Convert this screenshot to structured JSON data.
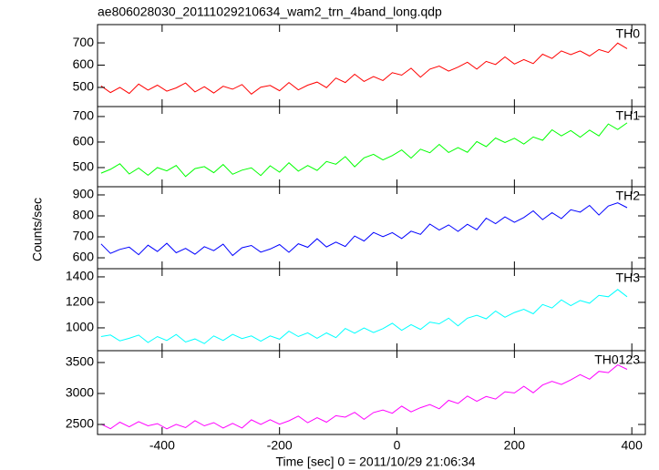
{
  "title": "ae806028030_20111029210634_wam2_trn_4band_long.qdp",
  "ylabel": "Counts/sec",
  "xlabel": "Time [sec] 0 = 2011/10/29 21:06:34",
  "xlim": [
    -510,
    423
  ],
  "xticks": [
    -400,
    -200,
    0,
    200,
    400
  ],
  "chart_data": [
    {
      "type": "line",
      "label": "TH0",
      "color": "#ff0000",
      "x": [
        -504,
        -488,
        -472,
        -456,
        -440,
        -424,
        -408,
        -392,
        -376,
        -360,
        -344,
        -328,
        -312,
        -296,
        -280,
        -264,
        -248,
        -232,
        -216,
        -200,
        -184,
        -168,
        -152,
        -136,
        -120,
        -104,
        -88,
        -72,
        -56,
        -40,
        -24,
        -8,
        8,
        24,
        40,
        56,
        72,
        88,
        104,
        120,
        136,
        152,
        168,
        184,
        200,
        216,
        232,
        248,
        264,
        280,
        296,
        312,
        328,
        344,
        360,
        376,
        392
      ],
      "values": [
        507,
        477,
        500,
        473,
        515,
        488,
        510,
        483,
        498,
        520,
        480,
        503,
        475,
        505,
        492,
        513,
        470,
        501,
        509,
        485,
        522,
        489,
        510,
        524,
        499,
        542,
        522,
        559,
        527,
        549,
        531,
        566,
        555,
        586,
        546,
        582,
        596,
        573,
        591,
        613,
        582,
        617,
        603,
        637,
        605,
        625,
        607,
        649,
        630,
        664,
        647,
        664,
        641,
        670,
        657,
        699,
        674
      ],
      "ylim": [
        414,
        782
      ],
      "yticks": [
        500,
        600,
        700
      ]
    },
    {
      "type": "line",
      "label": "TH1",
      "color": "#00ff00",
      "x": [
        -504,
        -488,
        -472,
        -456,
        -440,
        -424,
        -408,
        -392,
        -376,
        -360,
        -344,
        -328,
        -312,
        -296,
        -280,
        -264,
        -248,
        -232,
        -216,
        -200,
        -184,
        -168,
        -152,
        -136,
        -120,
        -104,
        -88,
        -72,
        -56,
        -40,
        -24,
        -8,
        8,
        24,
        40,
        56,
        72,
        88,
        104,
        120,
        136,
        152,
        168,
        184,
        200,
        216,
        232,
        248,
        264,
        280,
        296,
        312,
        328,
        344,
        360,
        376,
        392
      ],
      "values": [
        478,
        493,
        515,
        475,
        498,
        470,
        500,
        487,
        508,
        465,
        496,
        504,
        480,
        512,
        474,
        490,
        499,
        469,
        507,
        482,
        519,
        486,
        508,
        489,
        524,
        513,
        543,
        503,
        538,
        552,
        530,
        547,
        569,
        537,
        572,
        558,
        591,
        559,
        578,
        560,
        602,
        582,
        616,
        598,
        615,
        592,
        620,
        607,
        648,
        624,
        645,
        619,
        647,
        624,
        671,
        649,
        675
      ],
      "ylim": [
        425,
        739
      ],
      "yticks": [
        500,
        600,
        700
      ]
    },
    {
      "type": "line",
      "label": "TH2",
      "color": "#0000ff",
      "x": [
        -504,
        -488,
        -472,
        -456,
        -440,
        -424,
        -408,
        -392,
        -376,
        -360,
        -344,
        -328,
        -312,
        -296,
        -280,
        -264,
        -248,
        -232,
        -216,
        -200,
        -184,
        -168,
        -152,
        -136,
        -120,
        -104,
        -88,
        -72,
        -56,
        -40,
        -24,
        -8,
        8,
        24,
        40,
        56,
        72,
        88,
        104,
        120,
        136,
        152,
        168,
        184,
        200,
        216,
        232,
        248,
        264,
        280,
        296,
        312,
        328,
        344,
        360,
        376,
        392
      ],
      "values": [
        666,
        621,
        640,
        651,
        615,
        660,
        630,
        669,
        624,
        645,
        617,
        653,
        634,
        665,
        611,
        648,
        659,
        627,
        642,
        663,
        626,
        667,
        650,
        691,
        652,
        675,
        654,
        704,
        680,
        721,
        701,
        720,
        692,
        727,
        712,
        761,
        732,
        757,
        726,
        760,
        734,
        789,
        763,
        795,
        769,
        792,
        824,
        782,
        815,
        787,
        829,
        818,
        850,
        804,
        847,
        862,
        839
      ],
      "ylim": [
        548,
        939
      ],
      "yticks": [
        600,
        700,
        800,
        900
      ]
    },
    {
      "type": "line",
      "label": "TH3",
      "color": "#00ffff",
      "x": [
        -504,
        -488,
        -472,
        -456,
        -440,
        -424,
        -408,
        -392,
        -376,
        -360,
        -344,
        -328,
        -312,
        -296,
        -280,
        -264,
        -248,
        -232,
        -216,
        -200,
        -184,
        -168,
        -152,
        -136,
        -120,
        -104,
        -88,
        -72,
        -56,
        -40,
        -24,
        -8,
        8,
        24,
        40,
        56,
        72,
        88,
        104,
        120,
        136,
        152,
        168,
        184,
        200,
        216,
        232,
        248,
        264,
        280,
        296,
        312,
        328,
        344,
        360,
        376,
        392
      ],
      "values": [
        932,
        944,
        898,
        918,
        943,
        885,
        932,
        901,
        948,
        889,
        913,
        877,
        937,
        901,
        949,
        916,
        937,
        895,
        937,
        911,
        974,
        932,
        961,
        918,
        960,
        923,
        995,
        958,
        999,
        963,
        994,
        1036,
        980,
        1025,
        988,
        1045,
        1032,
        1076,
        1016,
        1076,
        1098,
        1071,
        1132,
        1083,
        1120,
        1146,
        1110,
        1183,
        1156,
        1220,
        1174,
        1215,
        1193,
        1255,
        1244,
        1301,
        1244
      ],
      "ylim": [
        821,
        1464
      ],
      "yticks": [
        1000,
        1200,
        1400
      ]
    },
    {
      "type": "line",
      "label": "TH0123",
      "color": "#ff00ff",
      "x": [
        -504,
        -488,
        -472,
        -456,
        -440,
        -424,
        -408,
        -392,
        -376,
        -360,
        -344,
        -328,
        -312,
        -296,
        -280,
        -264,
        -248,
        -232,
        -216,
        -200,
        -184,
        -168,
        -152,
        -136,
        -120,
        -104,
        -88,
        -72,
        -56,
        -40,
        -24,
        -8,
        8,
        24,
        40,
        56,
        72,
        88,
        104,
        120,
        136,
        152,
        168,
        184,
        200,
        216,
        232,
        248,
        264,
        280,
        296,
        312,
        328,
        344,
        360,
        376,
        392
      ],
      "values": [
        2505,
        2431,
        2537,
        2462,
        2546,
        2478,
        2513,
        2429,
        2501,
        2448,
        2561,
        2477,
        2529,
        2443,
        2517,
        2442,
        2575,
        2501,
        2576,
        2504,
        2559,
        2635,
        2527,
        2608,
        2537,
        2641,
        2617,
        2695,
        2582,
        2692,
        2734,
        2680,
        2796,
        2702,
        2771,
        2820,
        2752,
        2889,
        2838,
        2959,
        2874,
        2951,
        2910,
        3028,
        3009,
        3116,
        3011,
        3136,
        3195,
        3146,
        3219,
        3304,
        3231,
        3357,
        3337,
        3461,
        3389
      ],
      "ylim": [
        2338,
        3691
      ],
      "yticks": [
        2500,
        3000,
        3500
      ]
    }
  ]
}
